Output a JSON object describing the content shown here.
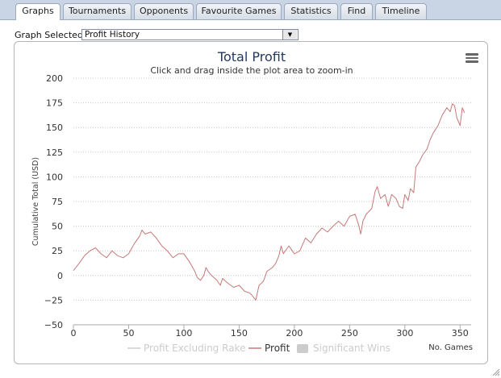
{
  "tabs": [
    {
      "label": "Graphs",
      "active": true
    },
    {
      "label": "Tournaments",
      "active": false
    },
    {
      "label": "Opponents",
      "active": false
    },
    {
      "label": "Favourite Games",
      "active": false
    },
    {
      "label": "Statistics",
      "active": false
    },
    {
      "label": "Find",
      "active": false
    },
    {
      "label": "Timeline",
      "active": false
    }
  ],
  "graph_selector": {
    "label": "Graph Selected:",
    "value": "Profit History"
  },
  "menu_icon": "hamburger-menu-icon",
  "chart_data": {
    "type": "line",
    "title": "Total Profit",
    "subtitle": "Click and drag inside the plot area to zoom-in",
    "ylabel": "Cumulative Total (USD)",
    "xlabel": "No. Games",
    "xlim": [
      0,
      360
    ],
    "ylim": [
      -50,
      200
    ],
    "x_ticks": [
      "0",
      "50",
      "100",
      "150",
      "200",
      "250",
      "300",
      "350"
    ],
    "y_ticks": [
      "200",
      "175",
      "150",
      "125",
      "100",
      "75",
      "50",
      "25",
      "0",
      "−25",
      "−50"
    ],
    "grid": true,
    "legend_position": "bottom-center",
    "legend": [
      {
        "name": "Profit Excluding Rake",
        "visible": false
      },
      {
        "name": "Profit",
        "visible": true
      },
      {
        "name": "Significant Wins",
        "visible": false
      }
    ],
    "colors": {
      "profit": "#c47a78",
      "hidden": "#cccccc"
    },
    "series": [
      {
        "name": "Profit",
        "points": [
          [
            0,
            5
          ],
          [
            5,
            12
          ],
          [
            10,
            20
          ],
          [
            15,
            25
          ],
          [
            20,
            28
          ],
          [
            25,
            22
          ],
          [
            30,
            18
          ],
          [
            35,
            25
          ],
          [
            40,
            20
          ],
          [
            45,
            18
          ],
          [
            50,
            22
          ],
          [
            55,
            32
          ],
          [
            60,
            40
          ],
          [
            62,
            46
          ],
          [
            65,
            42
          ],
          [
            70,
            44
          ],
          [
            75,
            38
          ],
          [
            80,
            30
          ],
          [
            85,
            25
          ],
          [
            90,
            18
          ],
          [
            95,
            22
          ],
          [
            100,
            22
          ],
          [
            105,
            14
          ],
          [
            108,
            8
          ],
          [
            110,
            4
          ],
          [
            112,
            -2
          ],
          [
            115,
            -5
          ],
          [
            118,
            0
          ],
          [
            120,
            8
          ],
          [
            122,
            4
          ],
          [
            125,
            0
          ],
          [
            130,
            -5
          ],
          [
            133,
            -10
          ],
          [
            135,
            -3
          ],
          [
            140,
            -8
          ],
          [
            145,
            -12
          ],
          [
            150,
            -10
          ],
          [
            155,
            -16
          ],
          [
            160,
            -18
          ],
          [
            163,
            -22
          ],
          [
            165,
            -25
          ],
          [
            168,
            -10
          ],
          [
            172,
            -6
          ],
          [
            175,
            4
          ],
          [
            180,
            8
          ],
          [
            183,
            12
          ],
          [
            186,
            20
          ],
          [
            188,
            30
          ],
          [
            190,
            22
          ],
          [
            195,
            30
          ],
          [
            200,
            22
          ],
          [
            205,
            25
          ],
          [
            210,
            38
          ],
          [
            215,
            33
          ],
          [
            220,
            42
          ],
          [
            225,
            48
          ],
          [
            230,
            44
          ],
          [
            235,
            50
          ],
          [
            240,
            55
          ],
          [
            245,
            50
          ],
          [
            250,
            60
          ],
          [
            255,
            62
          ],
          [
            258,
            52
          ],
          [
            260,
            42
          ],
          [
            262,
            55
          ],
          [
            265,
            62
          ],
          [
            270,
            68
          ],
          [
            273,
            85
          ],
          [
            275,
            90
          ],
          [
            278,
            78
          ],
          [
            282,
            82
          ],
          [
            285,
            70
          ],
          [
            288,
            82
          ],
          [
            292,
            78
          ],
          [
            295,
            70
          ],
          [
            298,
            68
          ],
          [
            300,
            82
          ],
          [
            303,
            76
          ],
          [
            305,
            88
          ],
          [
            308,
            84
          ],
          [
            310,
            110
          ],
          [
            313,
            115
          ],
          [
            316,
            122
          ],
          [
            320,
            128
          ],
          [
            323,
            138
          ],
          [
            326,
            145
          ],
          [
            330,
            152
          ],
          [
            334,
            163
          ],
          [
            338,
            170
          ],
          [
            341,
            166
          ],
          [
            343,
            174
          ],
          [
            345,
            172
          ],
          [
            347,
            160
          ],
          [
            350,
            152
          ],
          [
            352,
            170
          ],
          [
            354,
            165
          ]
        ]
      }
    ]
  }
}
